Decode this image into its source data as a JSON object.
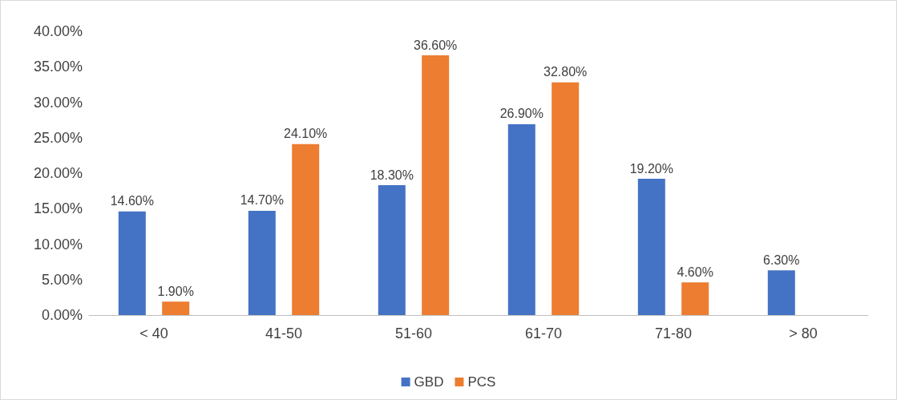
{
  "chart_data": {
    "type": "bar",
    "categories": [
      "< 40",
      "41-50",
      "51-60",
      "61-70",
      "71-80",
      "> 80"
    ],
    "series": [
      {
        "name": "GBD",
        "color": "#4472c4",
        "values": [
          14.6,
          14.7,
          18.3,
          26.9,
          19.2,
          6.3
        ],
        "value_labels": [
          "14.60%",
          "14.70%",
          "18.30%",
          "26.90%",
          "19.20%",
          "6.30%"
        ]
      },
      {
        "name": "PCS",
        "color": "#ed7d31",
        "values": [
          1.9,
          24.1,
          36.6,
          32.8,
          4.6,
          null
        ],
        "value_labels": [
          "1.90%",
          "24.10%",
          "36.60%",
          "32.80%",
          "4.60%",
          null
        ]
      }
    ],
    "ylim": [
      0,
      40
    ],
    "yticks": [
      {
        "value": 0,
        "label": "0.00%"
      },
      {
        "value": 5,
        "label": "5.00%"
      },
      {
        "value": 10,
        "label": "10.00%"
      },
      {
        "value": 15,
        "label": "15.00%"
      },
      {
        "value": 20,
        "label": "20.00%"
      },
      {
        "value": 25,
        "label": "25.00%"
      },
      {
        "value": 30,
        "label": "30.00%"
      },
      {
        "value": 35,
        "label": "35.00%"
      },
      {
        "value": 40,
        "label": "40.00%"
      }
    ],
    "grid": false,
    "legend": "bottom"
  }
}
